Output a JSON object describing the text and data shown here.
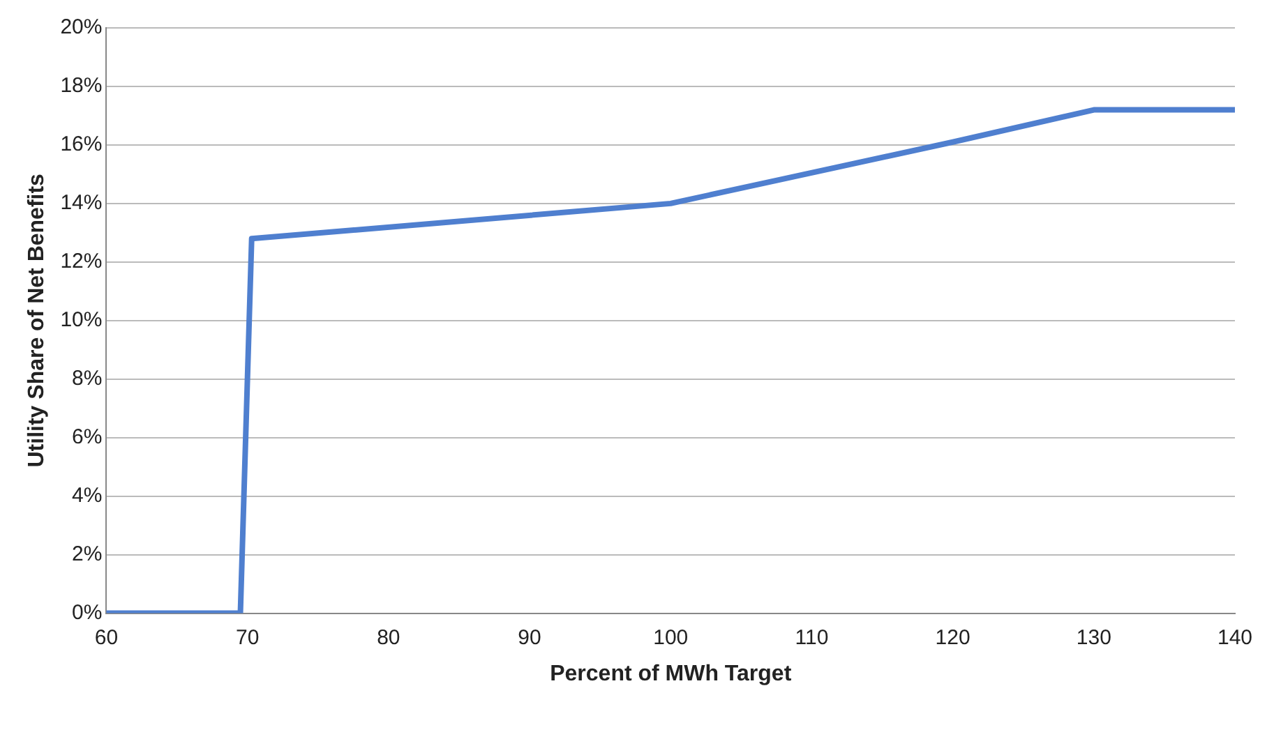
{
  "chart_data": {
    "type": "line",
    "xlabel": "Percent of MWh Target",
    "ylabel": "Utility Share of Net Benefits",
    "x": [
      60,
      69.5,
      70.3,
      100,
      120,
      130,
      140
    ],
    "series": [
      {
        "color": "#4f7fcf",
        "values": [
          0,
          0,
          12.8,
          14.0,
          16.1,
          17.2,
          17.2
        ]
      }
    ],
    "xlim": [
      60,
      140
    ],
    "xticks": [
      60,
      70,
      80,
      90,
      100,
      110,
      120,
      130,
      140
    ],
    "ylim": [
      0,
      20
    ],
    "yticks": [
      {
        "value": 0,
        "label": "0%"
      },
      {
        "value": 2,
        "label": "2%"
      },
      {
        "value": 4,
        "label": "4%"
      },
      {
        "value": 6,
        "label": "6%"
      },
      {
        "value": 8,
        "label": "8%"
      },
      {
        "value": 10,
        "label": "10%"
      },
      {
        "value": 12,
        "label": "12%"
      },
      {
        "value": 14,
        "label": "14%"
      },
      {
        "value": 16,
        "label": "16%"
      },
      {
        "value": 18,
        "label": "18%"
      },
      {
        "value": 20,
        "label": "20%"
      }
    ],
    "grid": "y",
    "legend": false,
    "marker": "none",
    "line_style": "solid"
  }
}
